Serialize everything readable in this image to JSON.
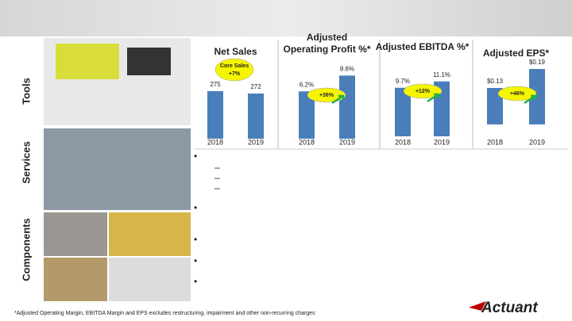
{
  "sections": [
    "Tools",
    "Services",
    "Components"
  ],
  "footnote": "*Adjusted  Operating Margin, EBITDA Margin and EPS excludes restructuring, impairment and other non-recurring charges",
  "logo": "Actuant",
  "chart_data": [
    {
      "type": "bar",
      "title": [
        "Net Sales"
      ],
      "categories": [
        "2018",
        "2019"
      ],
      "values": [
        275,
        272
      ],
      "color": "#4a7ebb",
      "ylim": [
        215,
        298
      ],
      "badge": [
        "Core Sales",
        "+7%"
      ]
    },
    {
      "type": "bar",
      "title": [
        "Adjusted",
        "Operating Profit %*"
      ],
      "categories": [
        "2018",
        "2019"
      ],
      "values": [
        6.2,
        8.6
      ],
      "value_labels": [
        "6.2%",
        "8.6%"
      ],
      "color": "#4a7ebb",
      "ylim": [
        -1,
        9
      ],
      "badge": [
        "+36%"
      ]
    },
    {
      "type": "bar",
      "title": [
        "Adjusted EBITDA %*"
      ],
      "categories": [
        "2018",
        "2019"
      ],
      "values": [
        9.7,
        11.1
      ],
      "value_labels": [
        "9.7%",
        "11.1%"
      ],
      "color": "#4a7ebb",
      "ylim": [
        -1,
        13.5
      ],
      "badge": [
        "+12%"
      ]
    },
    {
      "type": "bar",
      "title": [
        "Adjusted EPS*"
      ],
      "categories": [
        "2018",
        "2019"
      ],
      "values": [
        0.13,
        0.19
      ],
      "value_labels": [
        "$0.13",
        "$0.19"
      ],
      "color": "#4a7ebb",
      "ylim": [
        0.015,
        0.2
      ],
      "badge": [
        "+46%"
      ]
    }
  ]
}
